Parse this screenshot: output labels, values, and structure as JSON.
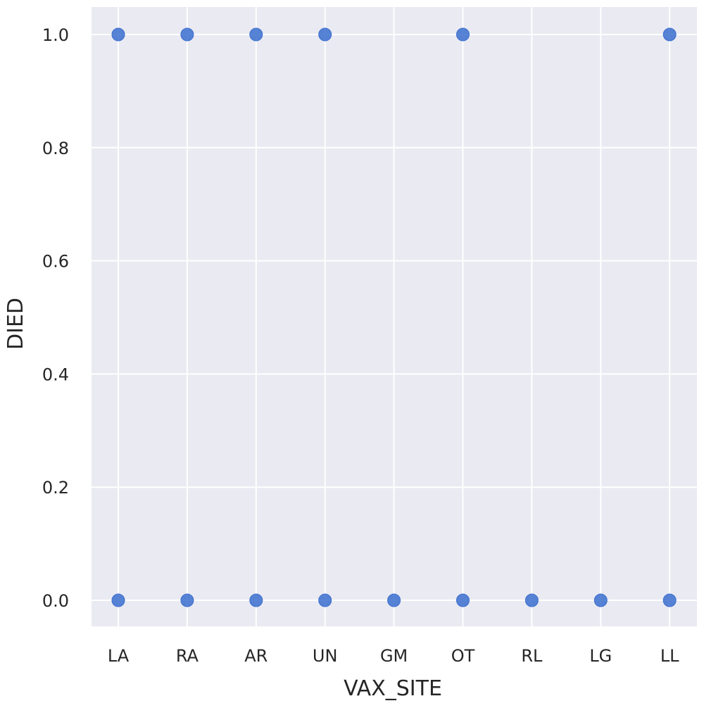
{
  "chart_data": {
    "type": "scatter",
    "xlabel": "VAX_SITE",
    "ylabel": "DIED",
    "categories": [
      "LA",
      "RA",
      "AR",
      "UN",
      "GM",
      "OT",
      "RL",
      "LG",
      "LL"
    ],
    "yticks": [
      "0.0",
      "0.2",
      "0.4",
      "0.6",
      "0.8",
      "1.0"
    ],
    "ylim": [
      0,
      1
    ],
    "grid": true,
    "points": [
      {
        "x": "LA",
        "y": 1.0
      },
      {
        "x": "RA",
        "y": 1.0
      },
      {
        "x": "AR",
        "y": 1.0
      },
      {
        "x": "UN",
        "y": 1.0
      },
      {
        "x": "OT",
        "y": 1.0
      },
      {
        "x": "LL",
        "y": 1.0
      },
      {
        "x": "LA",
        "y": 0.0
      },
      {
        "x": "RA",
        "y": 0.0
      },
      {
        "x": "AR",
        "y": 0.0
      },
      {
        "x": "UN",
        "y": 0.0
      },
      {
        "x": "GM",
        "y": 0.0
      },
      {
        "x": "OT",
        "y": 0.0
      },
      {
        "x": "RL",
        "y": 0.0
      },
      {
        "x": "LG",
        "y": 0.0
      },
      {
        "x": "LL",
        "y": 0.0
      }
    ],
    "colors": {
      "plot_background": "#eaeaf2",
      "grid": "#ffffff",
      "marker": "#3b6fcf"
    }
  }
}
